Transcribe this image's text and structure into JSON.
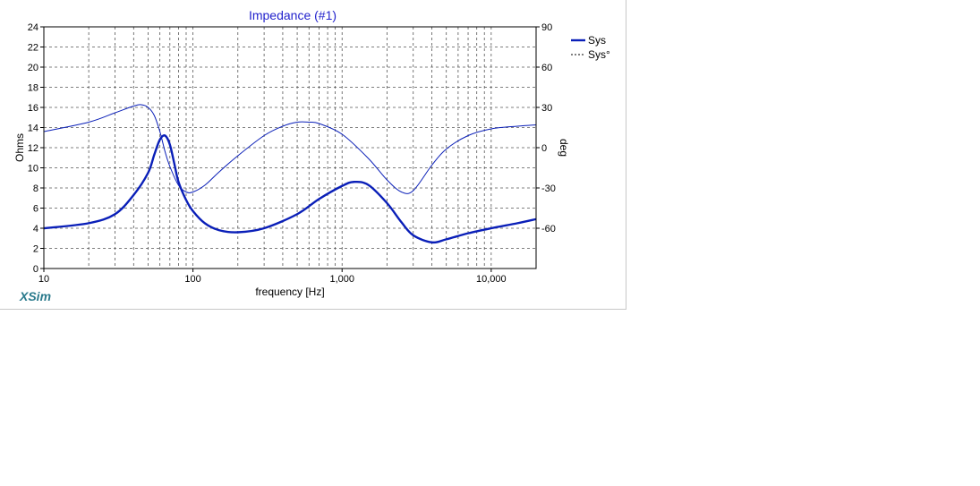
{
  "brand": "XSim",
  "chart_data": {
    "type": "line",
    "title": "Impedance (#1)",
    "xlabel": "frequency [Hz]",
    "ylabel": "Ohms",
    "y2label": "deg",
    "xscale": "log",
    "xlim": [
      10,
      20000
    ],
    "ylim": [
      0,
      24
    ],
    "y2lim": [
      -90,
      90
    ],
    "x_tick_labels": [
      {
        "value": 10,
        "label": "10"
      },
      {
        "value": 100,
        "label": "100"
      },
      {
        "value": 1000,
        "label": "1,000"
      },
      {
        "value": 10000,
        "label": "10,000"
      }
    ],
    "y_ticks": [
      0,
      2,
      4,
      6,
      8,
      10,
      12,
      14,
      16,
      18,
      20,
      22,
      24
    ],
    "y2_ticks": [
      -60,
      -30,
      0,
      30,
      60,
      90
    ],
    "grid": true,
    "legend_position": "right",
    "series": [
      {
        "name": "Sys",
        "axis": "left",
        "style": "solid-thick",
        "color": "#0a1fb8",
        "x": [
          10,
          20,
          30,
          40,
          50,
          55,
          60,
          65,
          70,
          75,
          80,
          90,
          100,
          120,
          150,
          200,
          300,
          500,
          700,
          1000,
          1200,
          1500,
          2000,
          2500,
          3000,
          4000,
          5000,
          7000,
          10000,
          15000,
          20000
        ],
        "y": [
          4.0,
          4.5,
          5.4,
          7.3,
          9.5,
          11.3,
          12.8,
          13.2,
          12.3,
          10.4,
          8.6,
          6.8,
          5.7,
          4.5,
          3.8,
          3.6,
          4.0,
          5.4,
          6.9,
          8.2,
          8.6,
          8.3,
          6.5,
          4.6,
          3.3,
          2.6,
          2.9,
          3.5,
          4.0,
          4.5,
          4.9
        ]
      },
      {
        "name": "Sys°",
        "axis": "right",
        "style": "solid-thin",
        "color": "#0a1fb8",
        "x": [
          10,
          20,
          30,
          40,
          45,
          50,
          55,
          60,
          65,
          70,
          80,
          90,
          100,
          120,
          150,
          200,
          300,
          400,
          500,
          600,
          700,
          1000,
          1500,
          2000,
          2500,
          3000,
          4000,
          5000,
          7000,
          10000,
          15000,
          20000
        ],
        "y": [
          12,
          19,
          26,
          31,
          32,
          30,
          24,
          12,
          -3,
          -14,
          -28,
          -33,
          -33,
          -28,
          -18,
          -6,
          9,
          16,
          19,
          19,
          18,
          10,
          -8,
          -24,
          -33,
          -32,
          -13,
          -1,
          9,
          14,
          16,
          17
        ]
      }
    ]
  }
}
